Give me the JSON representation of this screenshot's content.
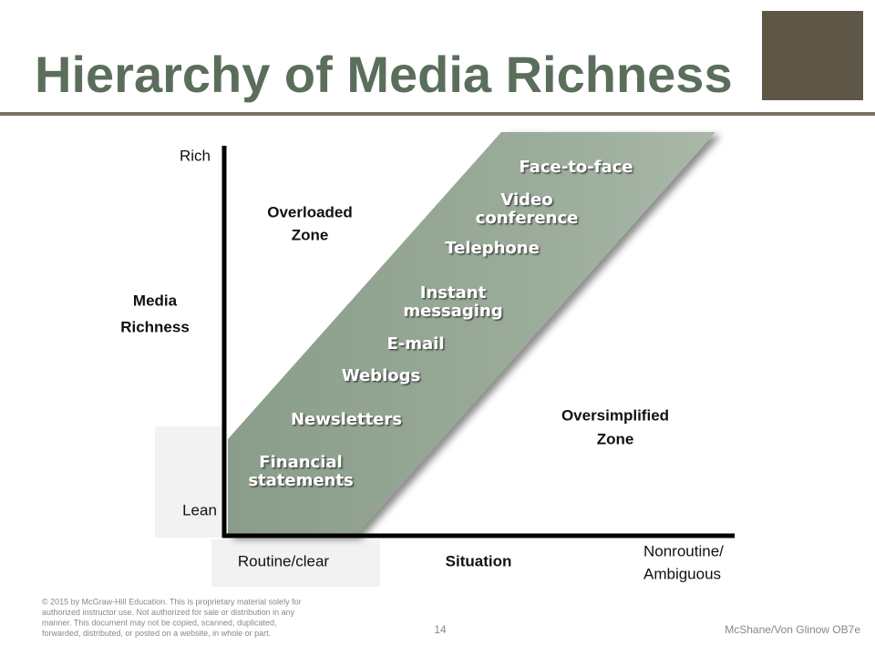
{
  "header": {
    "title": "Hierarchy of Media Richness"
  },
  "y_axis": {
    "label": [
      "Media",
      "Richness"
    ],
    "top": "Rich",
    "bottom": "Lean"
  },
  "x_axis": {
    "label": "Situation",
    "left": "Routine/clear",
    "right": [
      "Nonroutine/",
      "Ambiguous"
    ]
  },
  "zones": {
    "overloaded": [
      "Overloaded",
      "Zone"
    ],
    "oversimplified": [
      "Oversimplified",
      "Zone"
    ]
  },
  "media": [
    {
      "lines": [
        "Face-to-face"
      ]
    },
    {
      "lines": [
        "Video",
        "conference"
      ]
    },
    {
      "lines": [
        "Telephone"
      ]
    },
    {
      "lines": [
        "Instant",
        "messaging"
      ]
    },
    {
      "lines": [
        "E-mail"
      ]
    },
    {
      "lines": [
        "Weblogs"
      ]
    },
    {
      "lines": [
        "Newsletters"
      ]
    },
    {
      "lines": [
        "Financial",
        "statements"
      ]
    }
  ],
  "footer": {
    "copyright": [
      "© 2015 by McGraw-Hill Education. This is proprietary material solely for",
      "authorized instructor use. Not authorized for sale or distribution in any",
      "manner. This document may not be copied, scanned, duplicated,",
      "forwarded, distributed, or posted on a website, in whole or part."
    ],
    "page": "14",
    "credit": "McShane/Von Glinow OB7e"
  }
}
